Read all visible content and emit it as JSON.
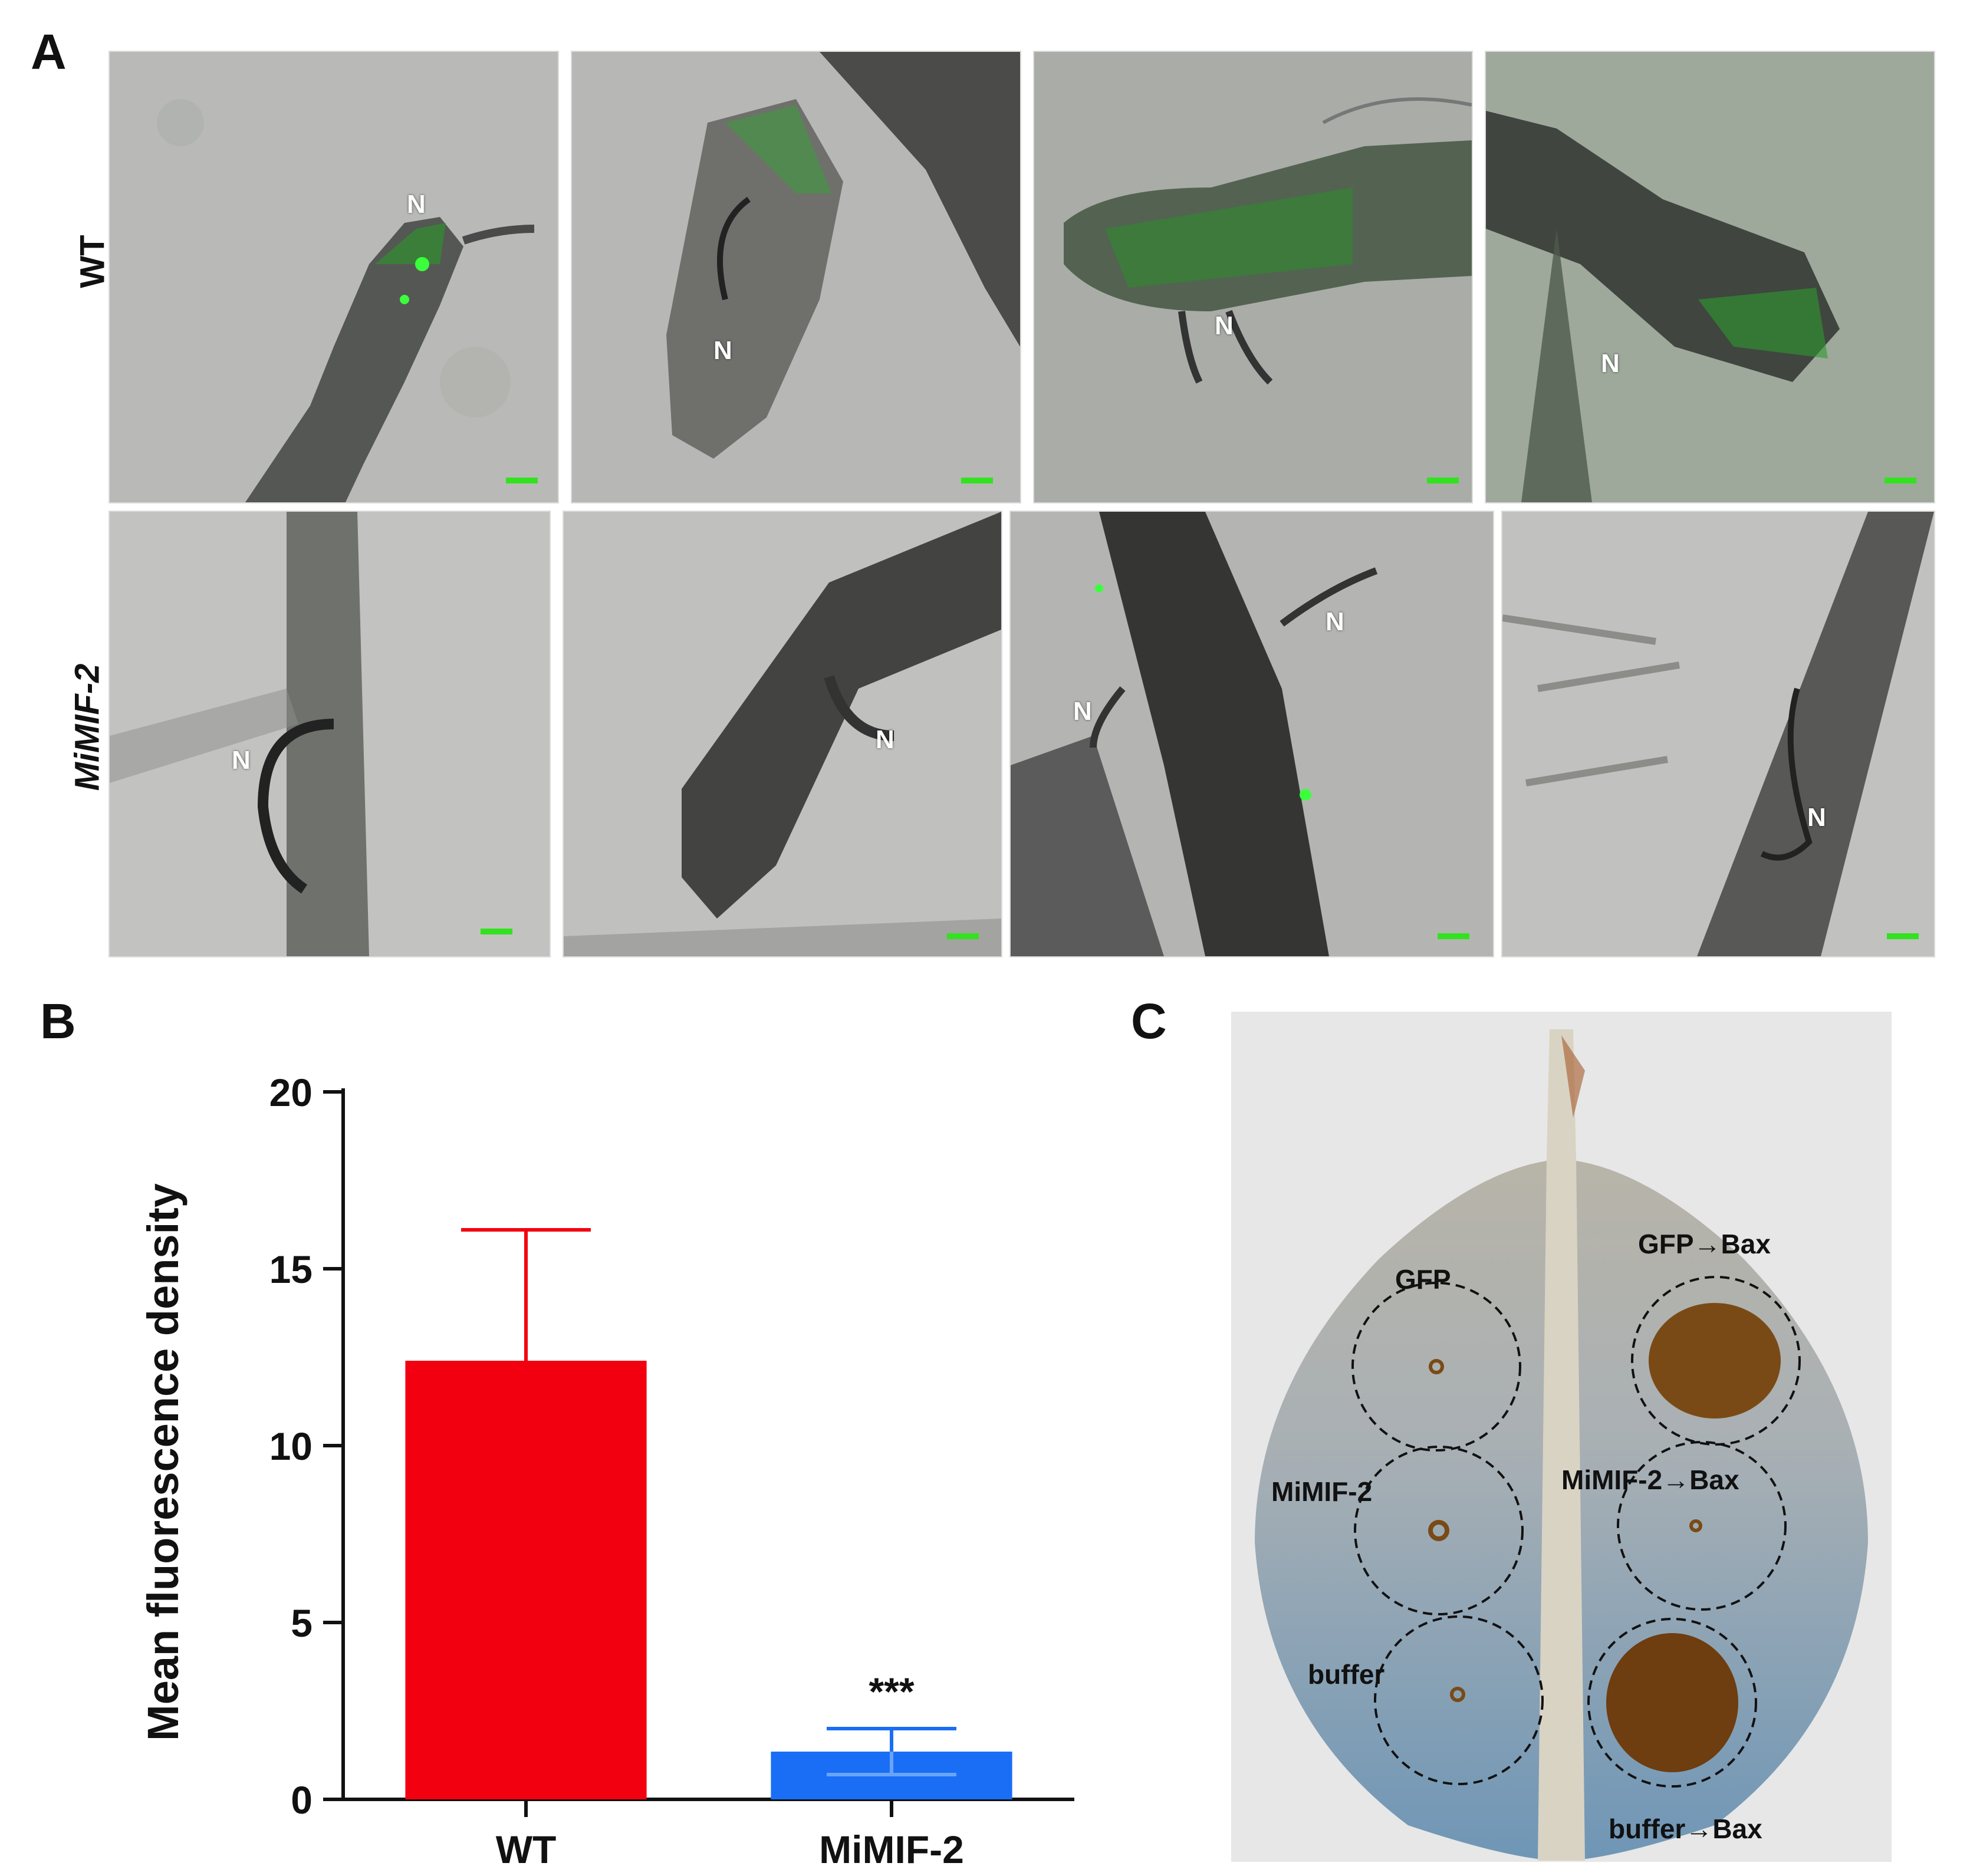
{
  "panelA": {
    "letter": "A",
    "rows": [
      {
        "label": "WT",
        "tiles": [
          {
            "n": [
              "N"
            ]
          },
          {
            "n": [
              "N"
            ]
          },
          {
            "n": [
              "N"
            ]
          },
          {
            "n": [
              "N"
            ]
          }
        ]
      },
      {
        "label": "MiMIF-2",
        "tiles": [
          {
            "n": [
              "N"
            ]
          },
          {
            "n": [
              "N"
            ]
          },
          {
            "n": [
              "N",
              "N"
            ]
          },
          {
            "n": [
              "N"
            ]
          }
        ]
      }
    ],
    "scalebar_color": "#32e21f"
  },
  "panelB": {
    "letter": "B"
  },
  "panelC": {
    "letter": "C",
    "leaf_labels": {
      "gfp": "GFP",
      "gfp_bax": "GFP→Bax",
      "mimif": "MiMIF-2",
      "mimif_bax": "MiMIF-2→Bax",
      "buffer": "buffer",
      "buffer_bax": "buffer→Bax"
    }
  },
  "chart_data": {
    "type": "bar",
    "categories": [
      "WT",
      "MiMIF-2"
    ],
    "values": [
      12.4,
      1.35
    ],
    "error_upper": [
      16.1,
      2.0
    ],
    "error_lower": [
      null,
      0.7
    ],
    "colors": [
      "#f20010",
      "#1a6ef5"
    ],
    "ylabel": "Mean fluorescence density",
    "ylim": [
      0,
      20
    ],
    "yticks": [
      0,
      5,
      10,
      15,
      20
    ],
    "annotations": [
      {
        "category": "MiMIF-2",
        "text": "***"
      }
    ],
    "grid": false
  }
}
